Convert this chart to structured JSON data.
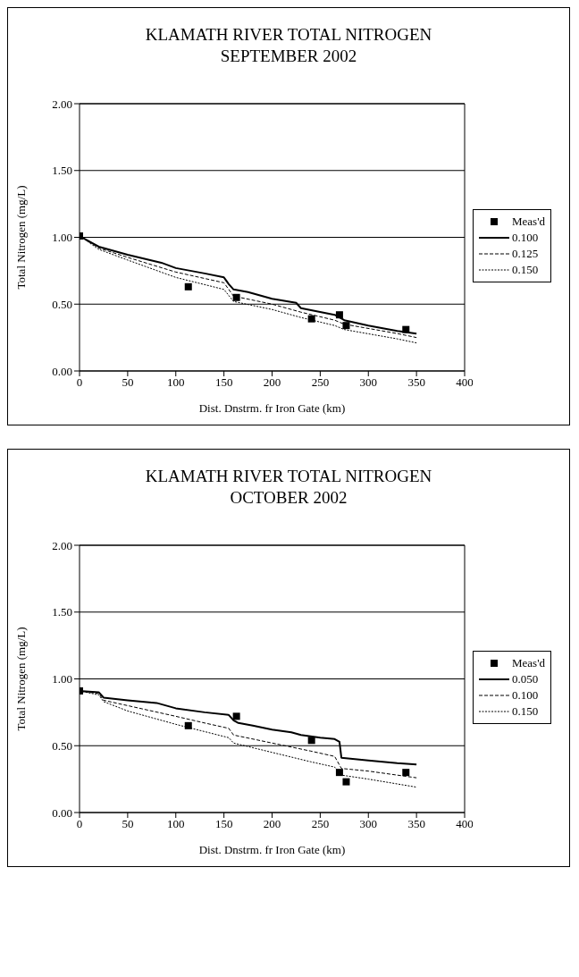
{
  "chart_data": [
    {
      "type": "line",
      "title": "KLAMATH RIVER TOTAL NITROGEN",
      "subtitle": "SEPTEMBER 2002",
      "xlabel": "Dist. Dnstrm. fr Iron Gate  (km)",
      "ylabel": "Total Nitrogen (mg/L)",
      "xlim": [
        0,
        400
      ],
      "xticks": [
        0,
        50,
        100,
        150,
        200,
        250,
        300,
        350,
        400
      ],
      "ylim": [
        0,
        2
      ],
      "yticks": [
        {
          "value": 0,
          "label": "0.00"
        },
        {
          "value": 0.5,
          "label": "0.50"
        },
        {
          "value": 1,
          "label": "1.00"
        },
        {
          "value": 1.5,
          "label": "1.50"
        },
        {
          "value": 2,
          "label": "2.00"
        }
      ],
      "grid": "y",
      "legend": "right",
      "series": [
        {
          "name": "Meas'd",
          "type": "scatter",
          "marker": "square",
          "color": "#000000",
          "x": [
            0,
            113,
            163,
            241,
            270,
            277,
            339
          ],
          "values": [
            1.01,
            0.63,
            0.55,
            0.39,
            0.42,
            0.34,
            0.31
          ]
        },
        {
          "name": "0.100",
          "type": "line",
          "line_style": "solid",
          "color": "#000000",
          "x": [
            0,
            20,
            50,
            85,
            100,
            130,
            150,
            155,
            160,
            175,
            200,
            225,
            230,
            265,
            275,
            300,
            330,
            350
          ],
          "values": [
            1.01,
            0.93,
            0.87,
            0.81,
            0.77,
            0.73,
            0.7,
            0.65,
            0.61,
            0.59,
            0.54,
            0.51,
            0.47,
            0.42,
            0.38,
            0.34,
            0.3,
            0.28
          ]
        },
        {
          "name": "0.125",
          "type": "line",
          "line_style": "dashed",
          "color": "#000000",
          "x": [
            0,
            20,
            50,
            100,
            150,
            160,
            200,
            230,
            265,
            275,
            330,
            350
          ],
          "values": [
            1.01,
            0.92,
            0.85,
            0.74,
            0.66,
            0.56,
            0.5,
            0.44,
            0.38,
            0.35,
            0.28,
            0.25
          ]
        },
        {
          "name": "0.150",
          "type": "line",
          "line_style": "dotted",
          "color": "#000000",
          "x": [
            0,
            20,
            50,
            100,
            150,
            160,
            200,
            230,
            265,
            275,
            330,
            350
          ],
          "values": [
            1.01,
            0.91,
            0.83,
            0.7,
            0.61,
            0.52,
            0.46,
            0.4,
            0.34,
            0.31,
            0.24,
            0.21
          ]
        }
      ]
    },
    {
      "type": "line",
      "title": "KLAMATH RIVER TOTAL NITROGEN",
      "subtitle": "OCTOBER 2002",
      "xlabel": "Dist. Dnstrm. fr Iron Gate  (km)",
      "ylabel": "Total Nitrogen (mg/L)",
      "xlim": [
        0,
        400
      ],
      "xticks": [
        0,
        50,
        100,
        150,
        200,
        250,
        300,
        350,
        400
      ],
      "ylim": [
        0,
        2
      ],
      "yticks": [
        {
          "value": 0,
          "label": "0.00"
        },
        {
          "value": 0.5,
          "label": "0.50"
        },
        {
          "value": 1,
          "label": "1.00"
        },
        {
          "value": 1.5,
          "label": "1.50"
        },
        {
          "value": 2,
          "label": "2.00"
        }
      ],
      "grid": "y",
      "legend": "right",
      "series": [
        {
          "name": "Meas'd",
          "type": "scatter",
          "marker": "square",
          "color": "#000000",
          "x": [
            0,
            113,
            163,
            241,
            270,
            277,
            339
          ],
          "values": [
            0.91,
            0.65,
            0.72,
            0.54,
            0.3,
            0.23,
            0.3
          ]
        },
        {
          "name": "0.050",
          "type": "line",
          "line_style": "solid",
          "color": "#000000",
          "x": [
            0,
            20,
            25,
            50,
            80,
            100,
            130,
            155,
            160,
            165,
            180,
            200,
            220,
            230,
            250,
            265,
            270,
            272,
            300,
            330,
            350
          ],
          "values": [
            0.91,
            0.9,
            0.86,
            0.84,
            0.82,
            0.78,
            0.75,
            0.73,
            0.69,
            0.67,
            0.65,
            0.62,
            0.6,
            0.58,
            0.56,
            0.55,
            0.53,
            0.41,
            0.39,
            0.37,
            0.36
          ]
        },
        {
          "name": "0.100",
          "type": "line",
          "line_style": "dashed",
          "color": "#000000",
          "x": [
            0,
            20,
            25,
            50,
            100,
            130,
            155,
            160,
            200,
            240,
            265,
            272,
            300,
            350
          ],
          "values": [
            0.91,
            0.89,
            0.84,
            0.8,
            0.72,
            0.67,
            0.63,
            0.58,
            0.52,
            0.46,
            0.42,
            0.33,
            0.31,
            0.26
          ]
        },
        {
          "name": "0.150",
          "type": "line",
          "line_style": "dotted",
          "color": "#000000",
          "x": [
            0,
            20,
            25,
            50,
            100,
            155,
            160,
            200,
            240,
            265,
            272,
            300,
            350
          ],
          "values": [
            0.91,
            0.88,
            0.83,
            0.76,
            0.66,
            0.56,
            0.52,
            0.45,
            0.38,
            0.34,
            0.28,
            0.25,
            0.19
          ]
        }
      ]
    }
  ]
}
